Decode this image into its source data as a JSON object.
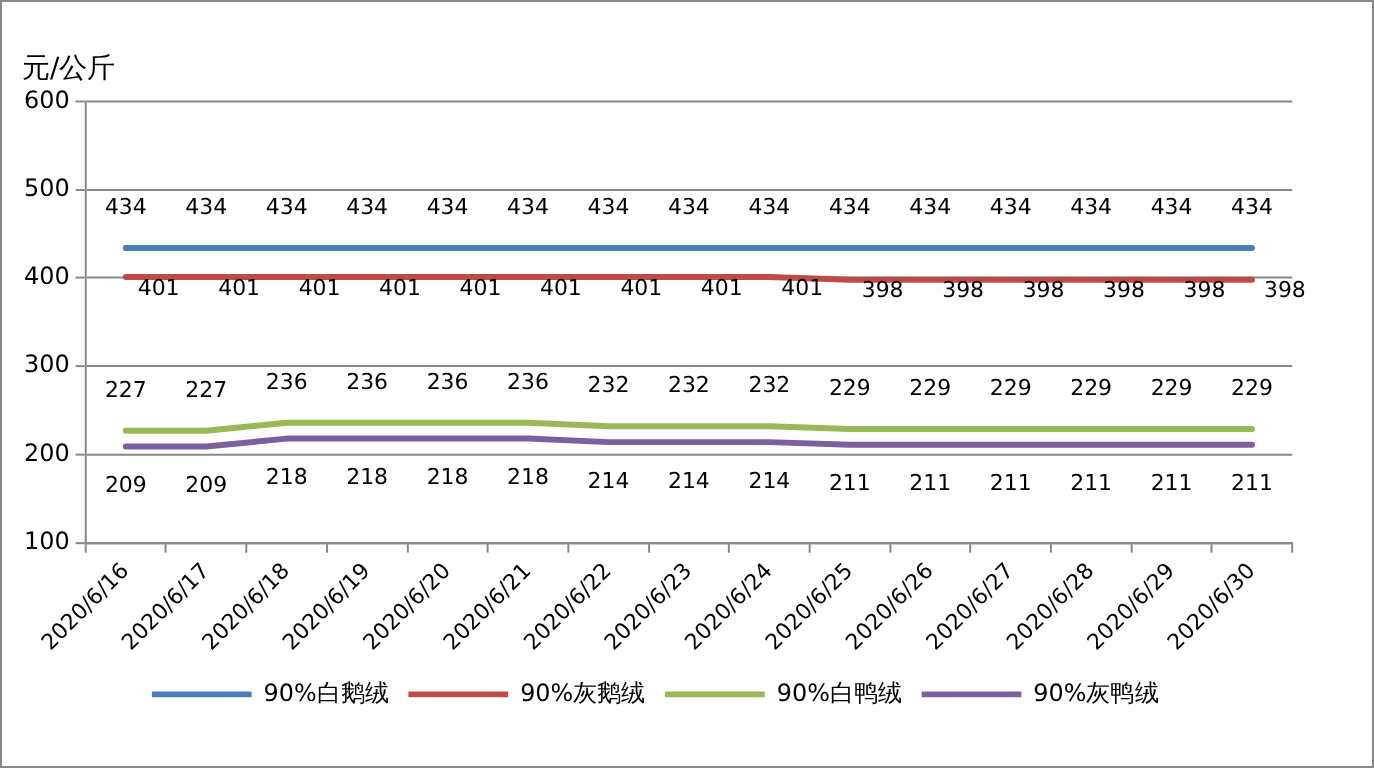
{
  "chart_data": {
    "type": "line",
    "ylabel": "元/公斤",
    "categories": [
      "2020/6/16",
      "2020/6/17",
      "2020/6/18",
      "2020/6/19",
      "2020/6/20",
      "2020/6/21",
      "2020/6/22",
      "2020/6/23",
      "2020/6/24",
      "2020/6/25",
      "2020/6/26",
      "2020/6/27",
      "2020/6/28",
      "2020/6/29",
      "2020/6/30"
    ],
    "series": [
      {
        "name": "90%白鹅绒",
        "color": "#4a7ebb",
        "values": [
          434,
          434,
          434,
          434,
          434,
          434,
          434,
          434,
          434,
          434,
          434,
          434,
          434,
          434,
          434
        ]
      },
      {
        "name": "90%灰鹅绒",
        "color": "#be4b48",
        "values": [
          401,
          401,
          401,
          401,
          401,
          401,
          401,
          401,
          401,
          398,
          398,
          398,
          398,
          398,
          398
        ]
      },
      {
        "name": "90%白鸭绒",
        "color": "#98b954",
        "values": [
          227,
          227,
          236,
          236,
          236,
          236,
          232,
          232,
          232,
          229,
          229,
          229,
          229,
          229,
          229
        ]
      },
      {
        "name": "90%灰鸭绒",
        "color": "#7d5fa0",
        "values": [
          209,
          209,
          218,
          218,
          218,
          218,
          214,
          214,
          214,
          211,
          211,
          211,
          211,
          211,
          211
        ]
      }
    ],
    "ylim": [
      100,
      600
    ],
    "yticks": [
      100,
      200,
      300,
      400,
      500,
      600
    ],
    "grid": "y",
    "legend": "bottom",
    "marker": "none",
    "line_style": "solid",
    "data_labels": true
  }
}
